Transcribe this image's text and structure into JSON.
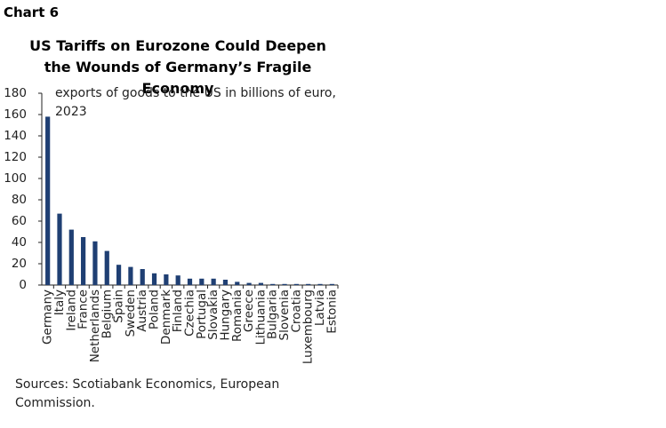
{
  "chart_data": {
    "type": "bar",
    "label": "Chart 6",
    "title": "US Tariffs on Eurozone Could Deepen the Wounds of Germany’s Fragile Economy",
    "annotation": "exports of goods to the US in billions of euro, 2023",
    "source": "Sources: Scotiabank Economics, European Commission.",
    "categories": [
      "Germany",
      "Italy",
      "Ireland",
      "France",
      "Netherlands",
      "Belgium",
      "Spain",
      "Sweden",
      "Austria",
      "Poland",
      "Denmark",
      "Finland",
      "Czechia",
      "Portugal",
      "Slovakia",
      "Hungary",
      "Romania",
      "Greece",
      "Lithuania",
      "Bulgaria",
      "Slovenia",
      "Croatia",
      "Luxembourg",
      "Latvia",
      "Estonia"
    ],
    "values": [
      158,
      67,
      52,
      45,
      41,
      32,
      19,
      17,
      15,
      11,
      10,
      9,
      6,
      6,
      6,
      5,
      3,
      2,
      2,
      1,
      1,
      1,
      1,
      1,
      1
    ],
    "color": "#1f3f73",
    "ylim": [
      0,
      180
    ],
    "yticks": [
      0,
      20,
      40,
      60,
      80,
      100,
      120,
      140,
      160,
      180
    ]
  }
}
